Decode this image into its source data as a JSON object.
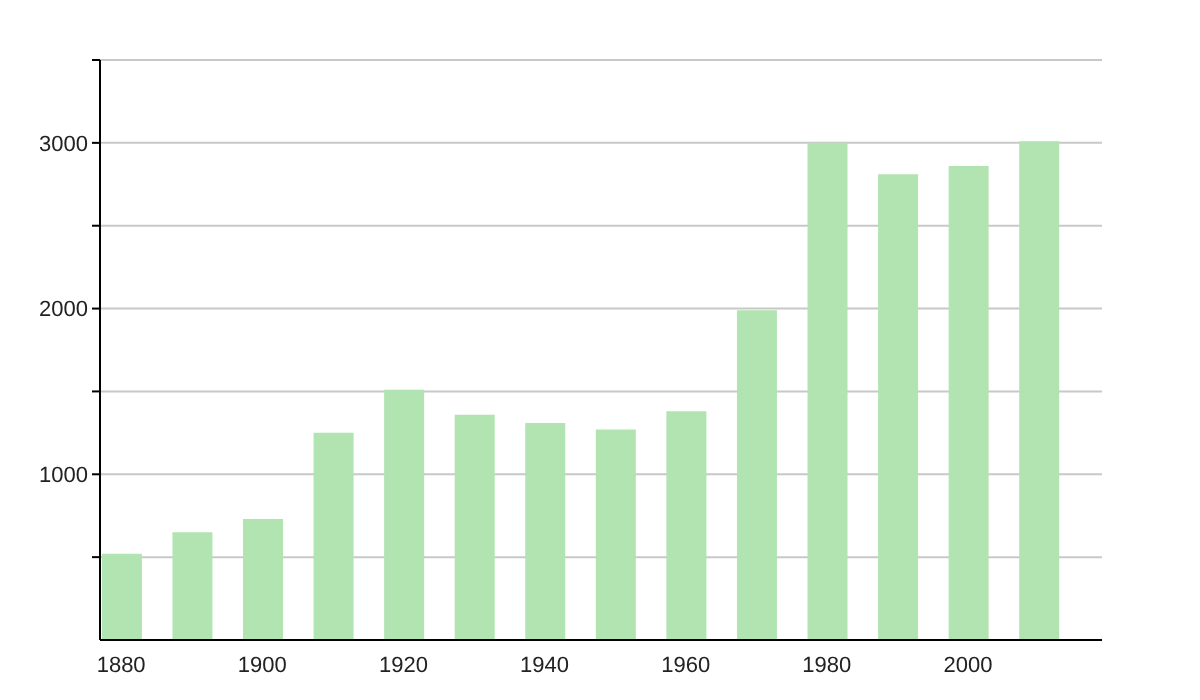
{
  "chart_data": {
    "type": "bar",
    "x": [
      1880,
      1890,
      1900,
      1910,
      1920,
      1930,
      1940,
      1950,
      1960,
      1970,
      1980,
      1990,
      2000,
      2010
    ],
    "values": [
      520,
      650,
      730,
      1250,
      1510,
      1360,
      1310,
      1270,
      1380,
      1990,
      3000,
      2810,
      2860,
      3010
    ],
    "color": "#b1e4b1",
    "xlim": [
      1877,
      2019
    ],
    "xticks": [
      1880,
      1900,
      1920,
      1940,
      1960,
      1980,
      2000
    ],
    "ylim": [
      0,
      3500
    ],
    "yticks": [
      {
        "value": 500,
        "label": null
      },
      1000,
      {
        "value": 1500,
        "label": null
      },
      2000,
      {
        "value": 2500,
        "label": null
      },
      3000,
      {
        "value": 3500,
        "label": null
      }
    ],
    "grid": "y"
  }
}
